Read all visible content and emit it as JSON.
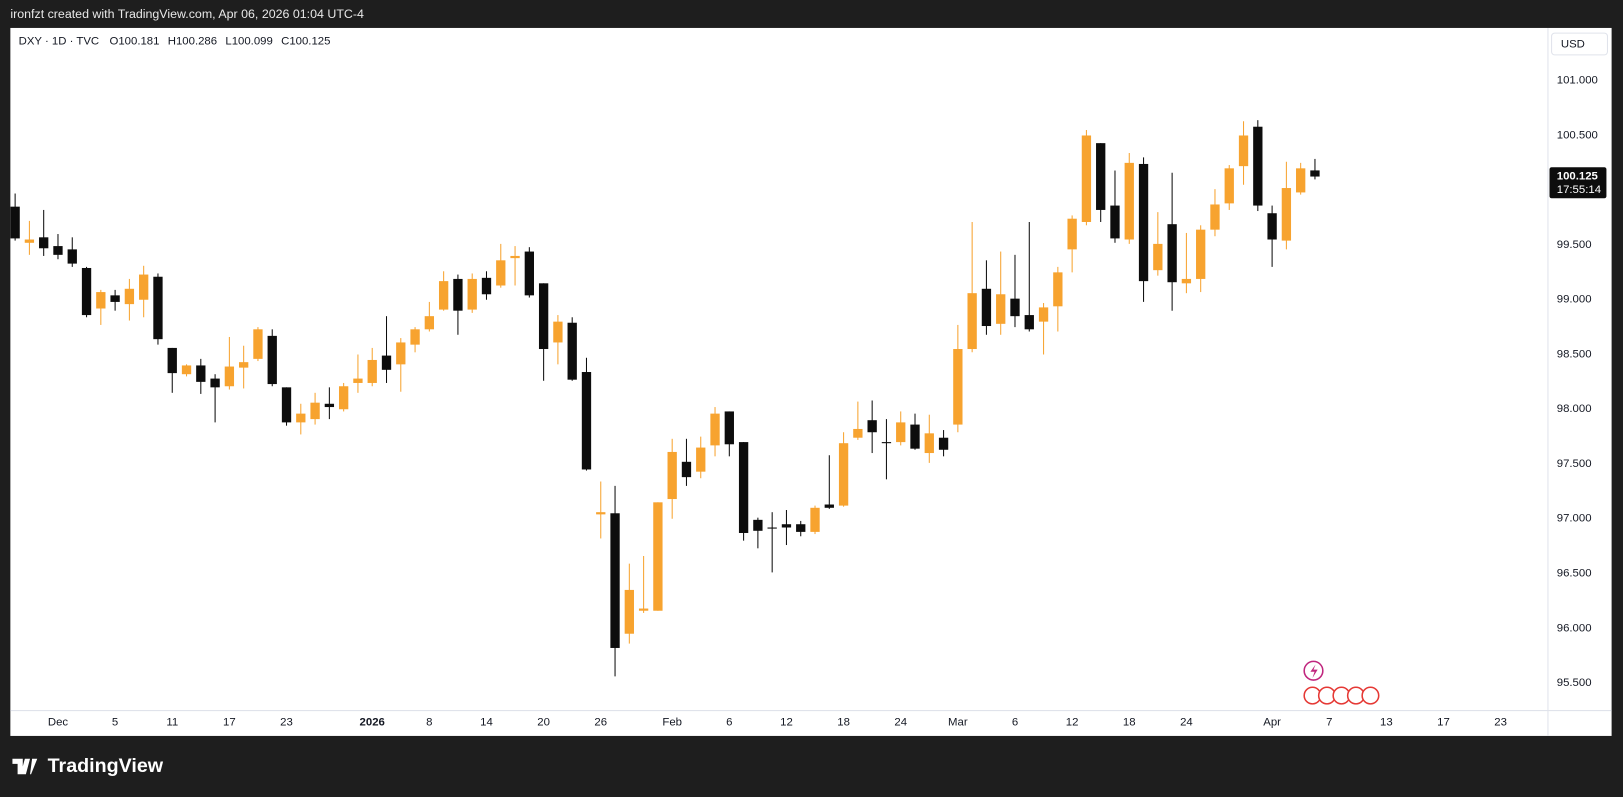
{
  "page": {
    "caption": "ironfzt created with TradingView.com, Apr 06, 2026 01:04 UTC-4",
    "brand": "TradingView"
  },
  "chart_data": {
    "type": "candlestick",
    "title": "DXY · 1D · TVC",
    "legend_labels": [
      "O",
      "H",
      "L",
      "C"
    ],
    "currency": "USD",
    "countdown": "17:55:14",
    "up_color": "#f7a32f",
    "down_color": "#0d0d0d",
    "grid": false,
    "ylim": [
      95.253,
      101.482
    ],
    "yticks": [
      {
        "value": 95.5,
        "label": "95.500"
      },
      {
        "value": 96,
        "label": "96.000"
      },
      {
        "value": 96.5,
        "label": "96.500"
      },
      {
        "value": 97,
        "label": "97.000"
      },
      {
        "value": 97.5,
        "label": "97.500"
      },
      {
        "value": 98,
        "label": "98.000"
      },
      {
        "value": 98.5,
        "label": "98.500"
      },
      {
        "value": 99,
        "label": "99.000"
      },
      {
        "value": 99.5,
        "label": "99.500"
      },
      {
        "value": 100,
        "label": "100.000"
      },
      {
        "value": 100.5,
        "label": "100.500"
      },
      {
        "value": 101,
        "label": "101.000"
      }
    ],
    "categories": [
      null,
      null,
      null,
      "Dec",
      null,
      null,
      null,
      "5",
      null,
      null,
      null,
      "11",
      null,
      null,
      null,
      "17",
      null,
      null,
      null,
      "23",
      null,
      null,
      null,
      null,
      null,
      "2026",
      null,
      null,
      null,
      "8",
      null,
      null,
      null,
      "14",
      null,
      null,
      null,
      "20",
      null,
      null,
      null,
      "26",
      null,
      null,
      null,
      null,
      "Feb",
      null,
      null,
      null,
      "6",
      null,
      null,
      null,
      "12",
      null,
      null,
      null,
      "18",
      null,
      null,
      null,
      "24",
      null,
      null,
      null,
      "Mar",
      null,
      null,
      null,
      "6",
      null,
      null,
      null,
      "12",
      null,
      null,
      null,
      "18",
      null,
      null,
      null,
      "24",
      null,
      null,
      null,
      null,
      null,
      "Apr",
      null,
      null,
      null,
      "7",
      null,
      null,
      null,
      "13",
      null,
      null,
      null,
      "17",
      null,
      null,
      null,
      "23"
    ],
    "open": [
      99.85,
      99.52,
      99.57,
      99.49,
      99.46,
      99.29,
      98.92,
      99.04,
      98.96,
      99.0,
      99.21,
      98.56,
      98.32,
      98.4,
      98.28,
      98.21,
      98.38,
      98.46,
      98.67,
      98.2,
      97.88,
      97.91,
      98.05,
      98.0,
      98.24,
      98.24,
      98.49,
      98.41,
      98.59,
      98.73,
      98.91,
      99.19,
      98.91,
      99.2,
      99.13,
      99.38,
      99.44,
      99.15,
      98.61,
      98.79,
      98.34,
      97.04,
      97.05,
      95.95,
      96.16,
      96.16,
      97.18,
      97.52,
      97.43,
      97.67,
      97.98,
      97.7,
      96.99,
      96.92,
      96.95,
      96.95,
      96.88,
      97.13,
      97.12,
      97.74,
      97.9,
      97.7,
      97.7,
      97.86,
      97.6,
      97.74,
      97.86,
      98.55,
      99.1,
      98.78,
      99.01,
      98.86,
      98.8,
      98.94,
      99.46,
      99.71,
      100.43,
      99.86,
      99.55,
      100.24,
      99.27,
      99.69,
      99.15,
      99.19,
      99.64,
      99.88,
      100.22,
      100.58,
      99.79,
      99.54,
      99.98,
      100.181,
      null,
      null,
      null,
      null,
      null,
      null,
      null,
      null,
      null,
      null,
      null,
      null,
      null
    ],
    "high": [
      99.97,
      99.72,
      99.82,
      99.6,
      99.57,
      99.3,
      99.09,
      99.09,
      99.19,
      99.31,
      99.24,
      98.56,
      98.41,
      98.46,
      98.32,
      98.66,
      98.58,
      98.75,
      98.73,
      98.2,
      98.05,
      98.15,
      98.2,
      98.24,
      98.5,
      98.56,
      98.85,
      98.65,
      98.75,
      98.98,
      99.26,
      99.23,
      99.24,
      99.26,
      99.51,
      99.49,
      99.48,
      99.15,
      98.86,
      98.84,
      98.47,
      97.34,
      97.3,
      96.59,
      96.66,
      97.15,
      97.73,
      97.73,
      97.75,
      98.02,
      97.98,
      97.7,
      97.01,
      97.06,
      97.08,
      96.98,
      97.12,
      97.58,
      97.79,
      98.07,
      98.08,
      97.91,
      97.98,
      97.96,
      97.95,
      97.81,
      98.77,
      99.71,
      99.36,
      99.44,
      99.41,
      99.71,
      98.97,
      99.3,
      99.77,
      100.55,
      100.43,
      100.18,
      100.34,
      100.3,
      99.8,
      100.16,
      99.61,
      99.68,
      100.01,
      100.23,
      100.63,
      100.64,
      99.86,
      100.26,
      100.25,
      100.286,
      null,
      null,
      null,
      null,
      null,
      null,
      null,
      null,
      null,
      null,
      null,
      null,
      null
    ],
    "low": [
      99.54,
      99.41,
      99.4,
      99.37,
      99.3,
      98.84,
      98.77,
      98.9,
      98.81,
      98.84,
      98.59,
      98.15,
      98.3,
      98.14,
      97.88,
      98.18,
      98.19,
      98.44,
      98.21,
      97.85,
      97.77,
      97.86,
      97.91,
      97.98,
      98.15,
      98.21,
      98.24,
      98.16,
      98.52,
      98.71,
      98.9,
      98.68,
      98.88,
      99.0,
      99.11,
      99.13,
      99.02,
      98.26,
      98.41,
      98.26,
      97.44,
      96.82,
      95.56,
      95.86,
      96.14,
      96.16,
      97.0,
      97.3,
      97.37,
      97.57,
      97.57,
      96.8,
      96.73,
      96.51,
      96.76,
      96.84,
      96.86,
      97.09,
      97.11,
      97.72,
      97.6,
      97.36,
      97.67,
      97.63,
      97.51,
      97.57,
      97.79,
      98.52,
      98.68,
      98.68,
      98.75,
      98.71,
      98.5,
      98.71,
      99.25,
      99.68,
      99.71,
      99.52,
      99.51,
      98.98,
      99.22,
      98.9,
      99.06,
      99.07,
      99.58,
      99.82,
      100.05,
      99.81,
      99.3,
      99.46,
      99.96,
      100.099,
      null,
      null,
      null,
      null,
      null,
      null,
      null,
      null,
      null,
      null,
      null,
      null,
      null
    ],
    "close": [
      99.56,
      99.55,
      99.47,
      99.41,
      99.33,
      98.86,
      99.07,
      98.98,
      99.1,
      99.23,
      98.64,
      98.33,
      98.4,
      98.25,
      98.2,
      98.39,
      98.43,
      98.73,
      98.23,
      97.88,
      97.96,
      98.06,
      98.02,
      98.21,
      98.28,
      98.45,
      98.36,
      98.61,
      98.73,
      98.85,
      99.17,
      98.9,
      99.19,
      99.05,
      99.36,
      99.4,
      99.04,
      98.55,
      98.8,
      98.27,
      97.45,
      97.06,
      95.82,
      96.35,
      96.18,
      97.15,
      97.61,
      97.38,
      97.65,
      97.96,
      97.68,
      96.87,
      96.89,
      96.91,
      96.92,
      96.88,
      97.1,
      97.1,
      97.69,
      97.82,
      97.79,
      97.69,
      97.88,
      97.64,
      97.78,
      97.63,
      98.55,
      99.06,
      98.76,
      99.05,
      98.85,
      98.73,
      98.93,
      99.25,
      99.74,
      100.5,
      99.82,
      99.56,
      100.25,
      99.17,
      99.51,
      99.16,
      99.19,
      99.64,
      99.87,
      100.2,
      100.5,
      99.86,
      99.55,
      100.02,
      100.2,
      100.125,
      null,
      null,
      null,
      null,
      null,
      null,
      null,
      null,
      null,
      null,
      null,
      null,
      null
    ]
  }
}
